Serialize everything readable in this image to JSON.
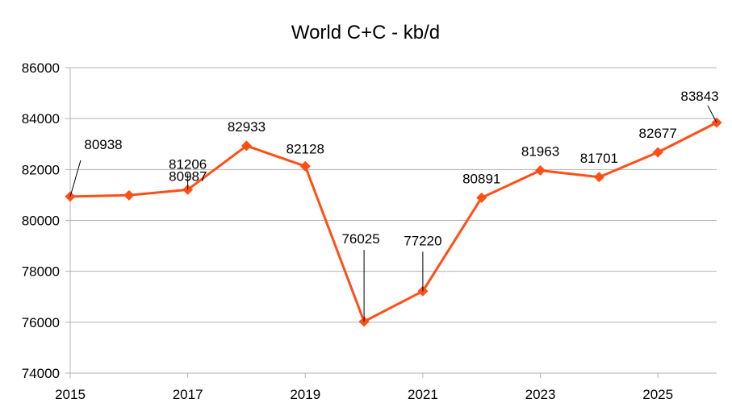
{
  "chart_data": {
    "type": "line",
    "title": "World C+C - kb/d",
    "xlabel": "",
    "ylabel": "",
    "x": [
      2015,
      2016,
      2017,
      2018,
      2019,
      2020,
      2021,
      2022,
      2023,
      2024,
      2025,
      2026
    ],
    "series": [
      {
        "values": [
          80938,
          80987,
          81206,
          82933,
          82128,
          76025,
          77220,
          80891,
          81963,
          81701,
          82677,
          83843
        ]
      }
    ],
    "xticks": [
      2015,
      2017,
      2019,
      2021,
      2023,
      2025
    ],
    "yticks": [
      74000,
      76000,
      78000,
      80000,
      82000,
      84000,
      86000
    ],
    "xlim": [
      2015,
      2026
    ],
    "ylim": [
      74000,
      86000
    ],
    "grid": "horizontal",
    "legend": "none",
    "colors": {
      "series": "#ff4f16",
      "grid": "#b3b3b3"
    }
  }
}
